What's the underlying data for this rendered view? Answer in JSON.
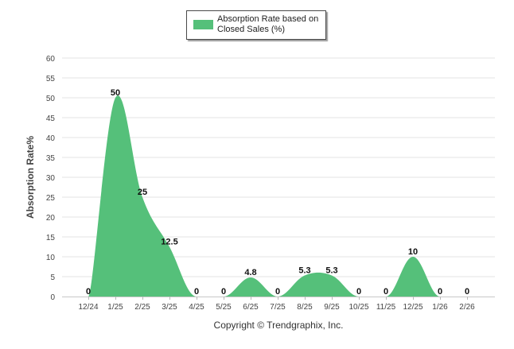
{
  "chart_data": {
    "type": "area",
    "x": [
      "12/24",
      "1/25",
      "2/25",
      "3/25",
      "4/25",
      "5/25",
      "6/25",
      "7/25",
      "8/25",
      "9/25",
      "10/25",
      "11/25",
      "12/25",
      "1/26",
      "2/26"
    ],
    "series": [
      {
        "name": "Absorption Rate based on Closed Sales (%)",
        "values": [
          0,
          50,
          25,
          12.5,
          0,
          0,
          4.8,
          0,
          5.3,
          5.3,
          0,
          0,
          10,
          0,
          0
        ],
        "color": "#55c07a"
      }
    ],
    "data_labels": [
      "0",
      "50",
      "25",
      "12.5",
      "0",
      "0",
      "4.8",
      "0",
      "5.3",
      "5.3",
      "0",
      "0",
      "10",
      "0",
      "0"
    ],
    "y_ticks": [
      "0",
      "5",
      "10",
      "15",
      "20",
      "25",
      "30",
      "35",
      "40",
      "45",
      "50",
      "55",
      "60"
    ],
    "ylabel": "Absorption Rate%",
    "xlabel": "",
    "ylim": [
      0,
      60
    ],
    "grid": true,
    "legend_position": "top-center"
  },
  "legend": {
    "label": "Absorption Rate based on Closed Sales (%)",
    "color": "#55c07a"
  },
  "footer": {
    "copyright": "Copyright © Trendgraphix, Inc."
  }
}
